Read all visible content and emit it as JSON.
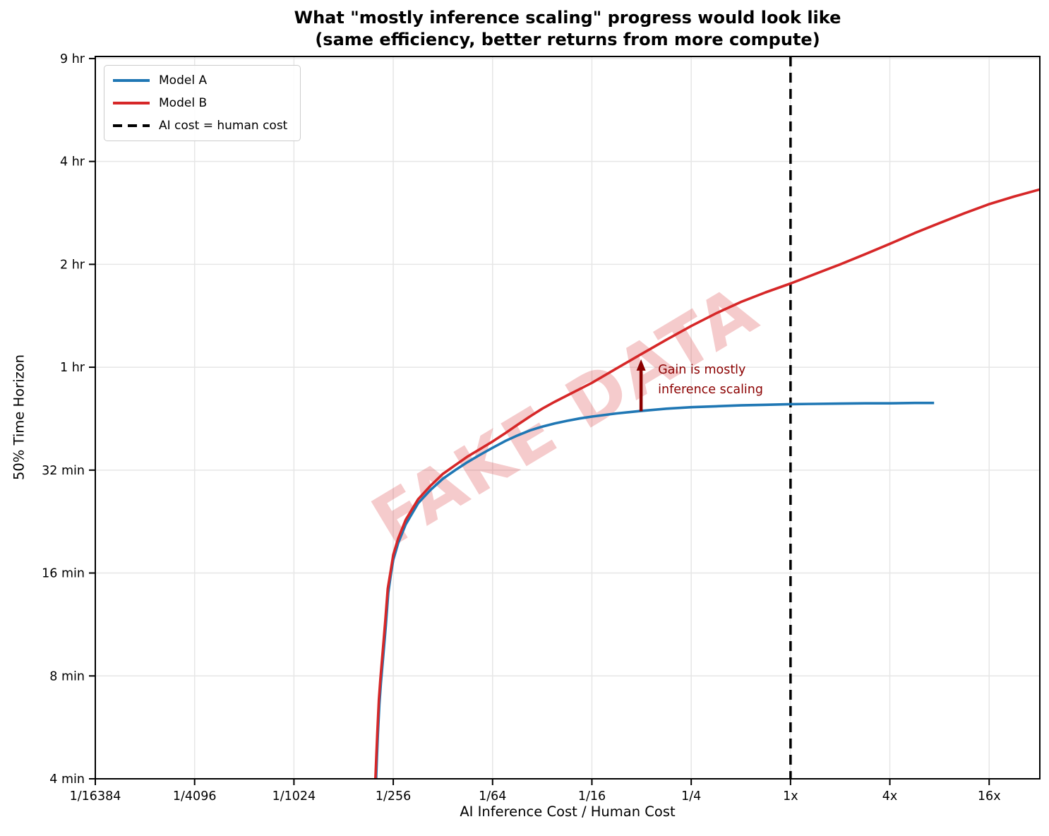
{
  "chart_data": {
    "type": "line",
    "title_line1": "What \"mostly inference scaling\" progress would look like",
    "title_line2": "(same efficiency, better returns from more compute)",
    "xlabel": "AI Inference Cost / Human Cost",
    "ylabel": "50% Time Horizon",
    "x_scale": "log2",
    "y_scale": "log2",
    "x_range_log2": [
      -14,
      5.02
    ],
    "y_range_log2": [
      2,
      9.02
    ],
    "grid": true,
    "legend_position": "upper left",
    "x_ticks": [
      {
        "log2": -14,
        "label": "1/16384"
      },
      {
        "log2": -12,
        "label": "1/4096"
      },
      {
        "log2": -10,
        "label": "1/1024"
      },
      {
        "log2": -8,
        "label": "1/256"
      },
      {
        "log2": -6,
        "label": "1/64"
      },
      {
        "log2": -4,
        "label": "1/16"
      },
      {
        "log2": -2,
        "label": "1/4"
      },
      {
        "log2": 0,
        "label": "1x"
      },
      {
        "log2": 2,
        "label": "4x"
      },
      {
        "log2": 4,
        "label": "16x"
      }
    ],
    "y_ticks": [
      {
        "minutes": 512,
        "label": "9 hr"
      },
      {
        "minutes": 256,
        "label": "4 hr"
      },
      {
        "minutes": 128,
        "label": "2 hr"
      },
      {
        "minutes": 64,
        "label": "1 hr"
      },
      {
        "minutes": 32,
        "label": "32 min"
      },
      {
        "minutes": 16,
        "label": "16 min"
      },
      {
        "minutes": 8,
        "label": "8 min"
      },
      {
        "minutes": 4,
        "label": "4 min"
      }
    ],
    "series": [
      {
        "name": "Model A",
        "color": "#1f77b4",
        "style": "solid",
        "points_log2cost_minutes": [
          [
            -8.345,
            4.0
          ],
          [
            -8.33,
            4.6
          ],
          [
            -8.31,
            5.4
          ],
          [
            -8.28,
            6.6
          ],
          [
            -8.25,
            7.6
          ],
          [
            -8.2,
            9.2
          ],
          [
            -8.15,
            11.2
          ],
          [
            -8.1,
            14.0
          ],
          [
            -8.05,
            15.8
          ],
          [
            -8.0,
            17.5
          ],
          [
            -7.9,
            19.6
          ],
          [
            -7.75,
            22.2
          ],
          [
            -7.5,
            25.6
          ],
          [
            -7.25,
            28.0
          ],
          [
            -7.0,
            30.2
          ],
          [
            -6.75,
            32.0
          ],
          [
            -6.5,
            33.8
          ],
          [
            -6.25,
            35.5
          ],
          [
            -6.0,
            37.2
          ],
          [
            -5.75,
            38.9
          ],
          [
            -5.5,
            40.4
          ],
          [
            -5.25,
            41.8
          ],
          [
            -5.0,
            42.9
          ],
          [
            -4.75,
            43.8
          ],
          [
            -4.5,
            44.6
          ],
          [
            -4.25,
            45.3
          ],
          [
            -4.0,
            45.9
          ],
          [
            -3.5,
            46.9
          ],
          [
            -3.0,
            47.7
          ],
          [
            -2.5,
            48.4
          ],
          [
            -2.0,
            48.9
          ],
          [
            -1.5,
            49.2
          ],
          [
            -1.0,
            49.5
          ],
          [
            -0.5,
            49.7
          ],
          [
            0.0,
            49.9
          ],
          [
            0.5,
            50.0
          ],
          [
            1.0,
            50.1
          ],
          [
            1.5,
            50.2
          ],
          [
            2.0,
            50.2
          ],
          [
            2.5,
            50.3
          ],
          [
            2.89,
            50.3
          ]
        ]
      },
      {
        "name": "Model B",
        "color": "#d62728",
        "style": "solid",
        "points_log2cost_minutes": [
          [
            -8.36,
            4.0
          ],
          [
            -8.34,
            4.7
          ],
          [
            -8.32,
            5.5
          ],
          [
            -8.29,
            6.8
          ],
          [
            -8.26,
            7.8
          ],
          [
            -8.21,
            9.5
          ],
          [
            -8.16,
            11.6
          ],
          [
            -8.11,
            14.4
          ],
          [
            -8.05,
            16.3
          ],
          [
            -8.0,
            18.1
          ],
          [
            -7.9,
            20.2
          ],
          [
            -7.75,
            22.9
          ],
          [
            -7.5,
            26.3
          ],
          [
            -7.25,
            28.8
          ],
          [
            -7.0,
            31.2
          ],
          [
            -6.75,
            33.1
          ],
          [
            -6.5,
            35.1
          ],
          [
            -6.25,
            36.9
          ],
          [
            -6.0,
            38.8
          ],
          [
            -5.75,
            41.0
          ],
          [
            -5.5,
            43.4
          ],
          [
            -5.25,
            45.9
          ],
          [
            -5.0,
            48.4
          ],
          [
            -4.75,
            50.7
          ],
          [
            -4.5,
            52.9
          ],
          [
            -4.25,
            55.2
          ],
          [
            -4.0,
            57.6
          ],
          [
            -3.5,
            63.5
          ],
          [
            -3.0,
            70.0
          ],
          [
            -2.5,
            77.0
          ],
          [
            -2.0,
            84.5
          ],
          [
            -1.5,
            92.0
          ],
          [
            -1.0,
            99.3
          ],
          [
            -0.5,
            106.0
          ],
          [
            0.0,
            112.5
          ],
          [
            0.5,
            120.0
          ],
          [
            1.0,
            128.0
          ],
          [
            1.5,
            137.0
          ],
          [
            2.0,
            147.0
          ],
          [
            2.5,
            158.0
          ],
          [
            3.0,
            169.0
          ],
          [
            3.5,
            180.5
          ],
          [
            4.0,
            192.0
          ],
          [
            4.5,
            202.0
          ],
          [
            5.02,
            212.0
          ]
        ]
      }
    ],
    "vline": {
      "label": "AI cost = human cost",
      "log2_x": 0,
      "color": "#000000",
      "dash": [
        14,
        9
      ],
      "width": 3.5
    },
    "annotation": {
      "line1": "Gain is mostly",
      "line2": "inference scaling",
      "color": "#8b0000",
      "arrow_x_log2": -3.01,
      "arrow_from_minutes": 47.6,
      "arrow_to_minutes": 67.5
    },
    "watermark": {
      "text": "FAKE DATA",
      "color": "rgba(214,39,40,0.24)",
      "rotation_deg": -31
    },
    "colors": {
      "grid": "#e6e6e6",
      "frame": "#000000",
      "text": "#000000"
    }
  }
}
